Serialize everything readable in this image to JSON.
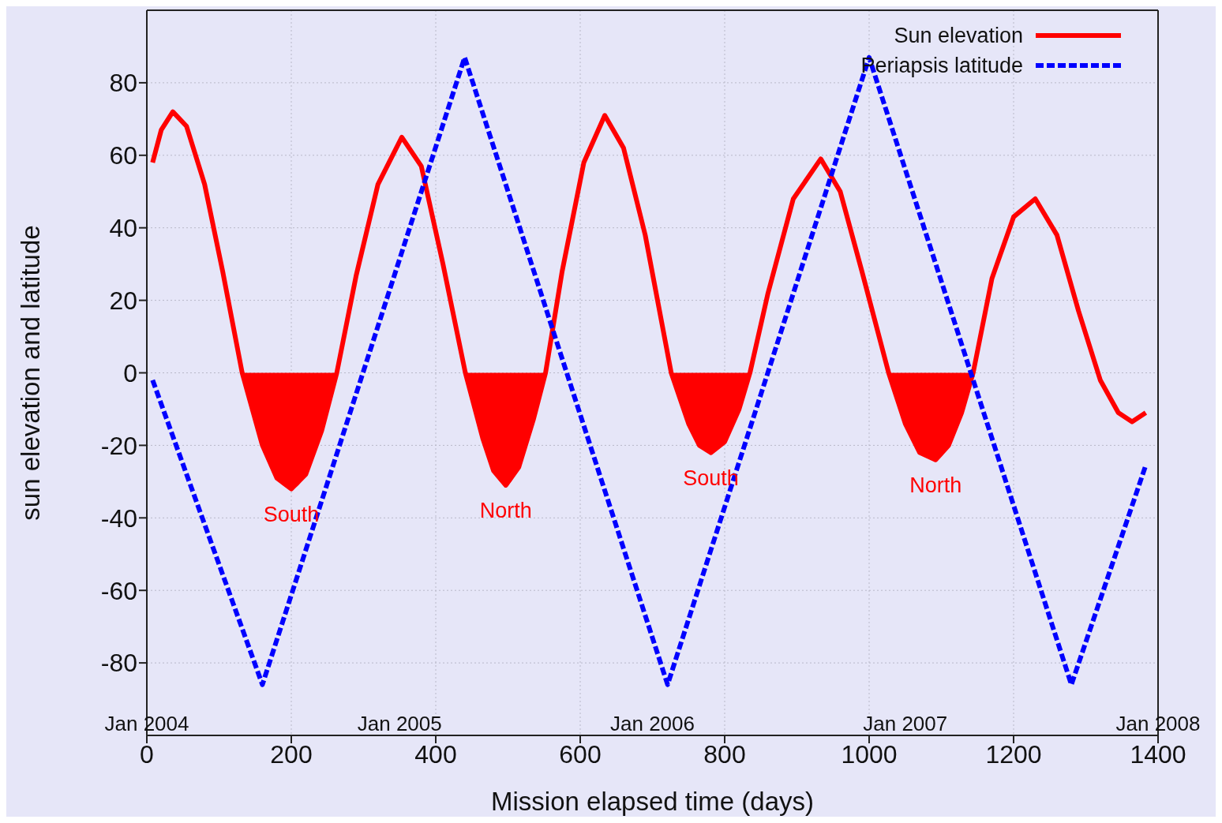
{
  "chart_data": {
    "type": "line",
    "xlabel": "Mission elapsed time (days)",
    "ylabel": "sun elevation and latitude",
    "xlim": [
      0,
      1400
    ],
    "xticks": [
      0,
      200,
      400,
      600,
      800,
      1000,
      1200,
      1400
    ],
    "ylim": [
      -100,
      100
    ],
    "yticks": [
      -80,
      -60,
      -40,
      -20,
      0,
      20,
      40,
      60,
      80
    ],
    "grid": true,
    "legend": "top right",
    "marker": "none",
    "series": [
      {
        "name": "Sun elevation",
        "color": "#ff0000",
        "line_style": "solid",
        "x": [
          8,
          20,
          36,
          55,
          80,
          105,
          132,
          160,
          180,
          200,
          220,
          242,
          263,
          290,
          320,
          353,
          380,
          410,
          441,
          465,
          480,
          497,
          515,
          535,
          552,
          575,
          605,
          634,
          660,
          690,
          726,
          750,
          765,
          781,
          800,
          820,
          835,
          860,
          895,
          933,
          960,
          990,
          1027,
          1050,
          1070,
          1092,
          1110,
          1128,
          1144,
          1170,
          1200,
          1230,
          1260,
          1290,
          1320,
          1345,
          1364,
          1383
        ],
        "values": [
          58,
          67,
          72,
          68,
          52,
          28,
          0,
          -20,
          -29,
          -32,
          -28,
          -16,
          0,
          27,
          52,
          65,
          57,
          30,
          0,
          -18,
          -27,
          -31,
          -26,
          -13,
          0,
          28,
          58,
          71,
          62,
          38,
          0,
          -14,
          -20,
          -22,
          -19,
          -10,
          0,
          22,
          48,
          59,
          50,
          28,
          0,
          -14,
          -22,
          -24,
          -20,
          -11,
          0,
          26,
          43,
          48,
          38,
          17,
          -2,
          -11,
          -13.5,
          -11
        ]
      },
      {
        "name": "Periapsis latitude",
        "color": "#0000ff",
        "line_style": "dashed",
        "x": [
          8,
          160,
          440,
          721,
          1000,
          1280,
          1383
        ],
        "values": [
          -2,
          -86,
          87,
          -86,
          87,
          -86,
          -25.5
        ]
      },
      {
        "type": "area",
        "color": "#ff0000",
        "x": [
          132,
          160,
          180,
          200,
          220,
          242,
          263,
          300,
          441,
          465,
          480,
          497,
          515,
          535,
          552,
          600,
          726,
          750,
          765,
          781,
          800,
          820,
          835,
          900,
          1027,
          1050,
          1070,
          1092,
          1110,
          1128,
          1144
        ],
        "values": [
          0,
          -20,
          -29,
          -32,
          -28,
          -16,
          0,
          null,
          0,
          -18,
          -27,
          -31,
          -26,
          -13,
          0,
          null,
          0,
          -14,
          -20,
          -22,
          -19,
          -10,
          0,
          null,
          0,
          -14,
          -22,
          -24,
          -20,
          -11,
          0
        ]
      }
    ],
    "annotations": [
      "South",
      "North",
      "South",
      "North",
      "Jan 2004",
      "Jan 2005",
      "Jan 2006",
      "Jan 2007",
      "Jan 2008"
    ]
  }
}
